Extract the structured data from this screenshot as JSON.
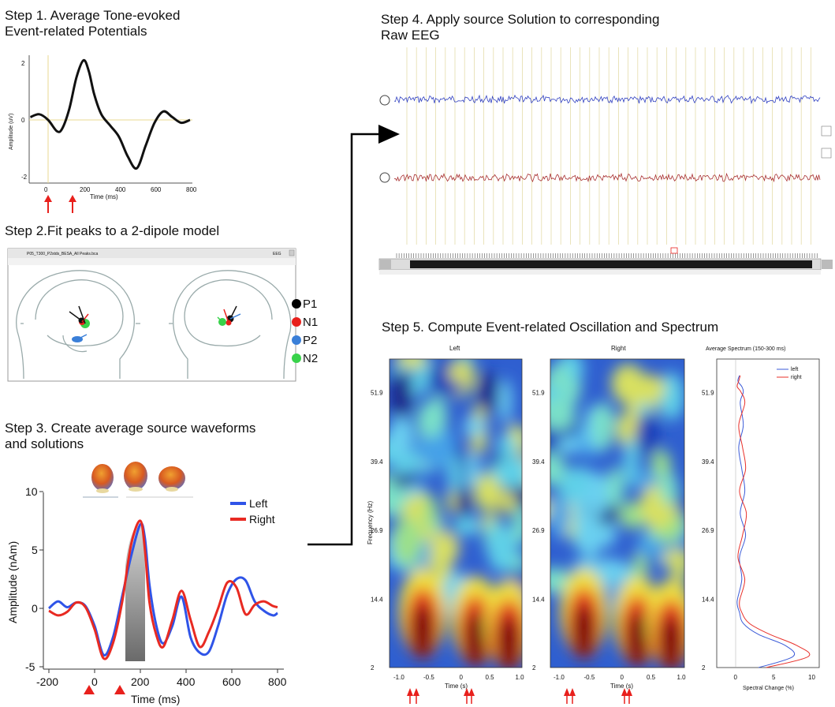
{
  "step1": {
    "title": "Step 1.  Average Tone-evoked\nEvent-related Potentials",
    "ylabel": "Amplitude (uV)",
    "xlabel": "Time (ms)",
    "xticks": [
      "0",
      "200",
      "400",
      "600",
      "800"
    ],
    "yticks": [
      "2",
      "0",
      "-2"
    ]
  },
  "step2": {
    "title": "Step 2.Fit peaks to a 2-dipole model",
    "window_title": "P05_T300_P2stds_BESA_All Peaks.bca",
    "window_label": "EEG",
    "legend": [
      {
        "label": "P1",
        "color": "#000000"
      },
      {
        "label": "N1",
        "color": "#e8201c"
      },
      {
        "label": "P2",
        "color": "#3a7fd8"
      },
      {
        "label": "N2",
        "color": "#38d24a"
      }
    ]
  },
  "step3": {
    "title": "Step 3. Create average source waveforms\nand solutions",
    "ylabel": "Amplitude (nAm)",
    "xlabel": "Time (ms)",
    "xticks": [
      "-200",
      "0",
      "200",
      "400",
      "600",
      "800"
    ],
    "yticks": [
      "10",
      "5",
      "0",
      "-5"
    ],
    "legend": [
      {
        "label": "Left",
        "color": "#2f54e8"
      },
      {
        "label": "Right",
        "color": "#e82a22"
      }
    ]
  },
  "step4": {
    "title": "Step 4.  Apply source Solution to corresponding\nRaw EEG"
  },
  "step5": {
    "title": "Step 5. Compute Event-related Oscillation and Spectrum",
    "panel_left": "Left",
    "panel_right": "Right",
    "panel_spec": "Average Spectrum (150-300 ms)",
    "ylabel": "Frequency (Hz)",
    "xlabel_time": "Time (s)",
    "xlabel_spec": "Spectral Change (%)",
    "yticks": [
      "51.9",
      "39.4",
      "26.9",
      "14.4",
      "2"
    ],
    "xticks_time": [
      "-1.0",
      "-0.5",
      "0",
      "0.5",
      "1.0"
    ],
    "xticks_spec": [
      "0",
      "5",
      "10"
    ],
    "spec_legend": [
      {
        "label": "left",
        "color": "#3b5bd8"
      },
      {
        "label": "right",
        "color": "#e8302a"
      }
    ]
  },
  "chart_data": [
    {
      "type": "line",
      "title": "",
      "xlabel": "Time (ms)",
      "ylabel": "Amplitude (uV)",
      "xlim": [
        -100,
        800
      ],
      "ylim": [
        -2.5,
        2.5
      ],
      "series": [
        {
          "values_x": [
            -100,
            -50,
            0,
            50,
            80,
            120,
            160,
            200,
            230,
            260,
            300,
            350,
            400,
            450,
            500,
            550,
            600,
            650,
            700,
            750,
            800
          ],
          "values_y": [
            0.1,
            0.2,
            0.0,
            -0.4,
            -0.3,
            0.4,
            1.5,
            2.1,
            1.7,
            0.9,
            0.2,
            -0.2,
            -0.6,
            -1.3,
            -1.7,
            -0.9,
            -0.1,
            0.3,
            0.1,
            -0.1,
            0.0
          ]
        }
      ]
    },
    {
      "type": "line",
      "title": "",
      "xlabel": "Time (ms)",
      "ylabel": "Amplitude (nAm)",
      "xlim": [
        -200,
        800
      ],
      "ylim": [
        -6,
        10
      ],
      "series": [
        {
          "name": "Left",
          "values_x": [
            -200,
            -160,
            -120,
            -80,
            -40,
            0,
            40,
            80,
            120,
            160,
            200,
            220,
            240,
            270,
            300,
            340,
            380,
            420,
            460,
            500,
            540,
            580,
            620,
            660,
            700,
            740,
            780,
            800
          ],
          "values_y": [
            0,
            0.6,
            0.1,
            0.5,
            0.2,
            -1.5,
            -4.0,
            -2.5,
            1.0,
            4.5,
            7.2,
            6.0,
            2.0,
            -1.5,
            -3.0,
            -1.5,
            1.0,
            -2.5,
            -3.8,
            -3.7,
            -1.5,
            1.2,
            2.5,
            2.4,
            0.6,
            -0.2,
            -0.6,
            -0.4
          ]
        },
        {
          "name": "Right",
          "values_x": [
            -200,
            -160,
            -120,
            -80,
            -40,
            0,
            40,
            80,
            120,
            160,
            200,
            220,
            240,
            270,
            300,
            340,
            380,
            420,
            460,
            500,
            540,
            580,
            620,
            660,
            700,
            740,
            780,
            800
          ],
          "values_y": [
            -0.2,
            -0.6,
            -0.3,
            0.5,
            0.1,
            -1.8,
            -4.3,
            -3.0,
            0.5,
            5.5,
            7.5,
            5.0,
            0.5,
            -2.3,
            -3.3,
            -1.0,
            1.5,
            -1.0,
            -3.3,
            -2.0,
            0.0,
            2.2,
            1.8,
            -0.5,
            0.3,
            0.6,
            0.2,
            0.1
          ]
        }
      ]
    },
    {
      "type": "line",
      "title": "Average Spectrum (150-300 ms)",
      "xlabel": "Spectral Change (%)",
      "ylabel": "Frequency (Hz)",
      "xlim": [
        -2,
        10
      ],
      "ylim": [
        2,
        55
      ],
      "series": [
        {
          "name": "left",
          "values_x": [
            3.0,
            7.5,
            6.5,
            3.0,
            1.0,
            0.5,
            0.2,
            0.8,
            0.5,
            1.3,
            0.6,
            1.2,
            0.8,
            0.4,
            1.0,
            0.6,
            1.0,
            0.8,
            0.3,
            0.5
          ],
          "values_y": [
            2,
            4,
            6,
            8,
            10,
            12,
            14,
            18,
            22,
            26,
            30,
            34,
            38,
            42,
            46,
            50,
            52,
            53,
            54,
            55
          ]
        },
        {
          "name": "right",
          "values_x": [
            4.0,
            9.5,
            8.0,
            4.5,
            1.8,
            0.8,
            0.5,
            1.2,
            0.3,
            0.9,
            1.4,
            0.5,
            1.3,
            0.9,
            0.4,
            1.2,
            0.7,
            0.2,
            0.4,
            0.6
          ],
          "values_y": [
            2,
            4,
            6,
            8,
            10,
            12,
            14,
            18,
            22,
            26,
            30,
            34,
            38,
            42,
            46,
            50,
            52,
            53,
            54,
            55
          ]
        }
      ]
    }
  ]
}
